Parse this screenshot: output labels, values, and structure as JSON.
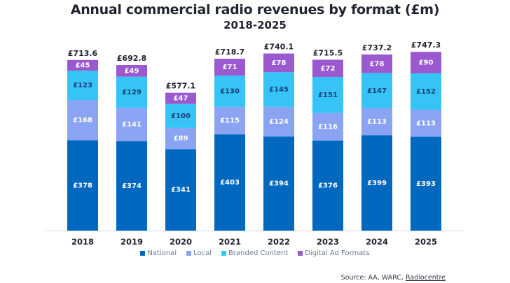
{
  "chart_data": {
    "type": "bar",
    "stacked": true,
    "title": "Annual commercial radio revenues by format (£m)",
    "subtitle": "2018-2025",
    "xlabel": "",
    "ylabel": "",
    "grid": false,
    "legend_position": "bottom",
    "categories": [
      "2018",
      "2019",
      "2020",
      "2021",
      "2022",
      "2023",
      "2024",
      "2025"
    ],
    "series": [
      {
        "name": "National",
        "color": "#0068bf",
        "label_color": "#ffffff",
        "values": [
          378,
          374,
          341,
          403,
          394,
          376,
          399,
          393
        ],
        "labels": [
          "£378",
          "£374",
          "£341",
          "£403",
          "£394",
          "£376",
          "£399",
          "£393"
        ]
      },
      {
        "name": "Local",
        "color": "#8aa3f2",
        "label_color": "#ffffff",
        "values": [
          168,
          141,
          89,
          115,
          124,
          116,
          113,
          113
        ],
        "labels": [
          "£168",
          "£141",
          "£89",
          "£115",
          "£124",
          "£116",
          "£113",
          "£113"
        ]
      },
      {
        "name": "Branded Content",
        "color": "#35c4f5",
        "label_color": "#1d3e7a",
        "values": [
          123,
          129,
          100,
          130,
          145,
          151,
          147,
          152
        ],
        "labels": [
          "£123",
          "£129",
          "£100",
          "£130",
          "£145",
          "£151",
          "£147",
          "£152"
        ]
      },
      {
        "name": "Digital Ad Formats",
        "color": "#9b59d0",
        "label_color": "#ffffff",
        "values": [
          45,
          49,
          47,
          71,
          78,
          72,
          78,
          90
        ],
        "labels": [
          "£45",
          "£49",
          "£47",
          "£71",
          "£78",
          "£72",
          "£78",
          "£90"
        ]
      }
    ],
    "totals": [
      713.6,
      692.8,
      577.1,
      718.7,
      740.1,
      715.5,
      737.2,
      747.3
    ],
    "total_labels": [
      "£713.6",
      "£692.8",
      "£577.1",
      "£718.7",
      "£740.1",
      "£715.5",
      "£737.2",
      "£747.3"
    ],
    "ylim": [
      0,
      800
    ]
  },
  "legend": [
    "National",
    "Local",
    "Branded Content",
    "Digital Ad Formats"
  ],
  "source": {
    "prefix": "Source: AA, WARC, ",
    "link": "Radiocentre"
  },
  "colors": {
    "axis": "#d0d6e2",
    "text": "#1f2430"
  }
}
